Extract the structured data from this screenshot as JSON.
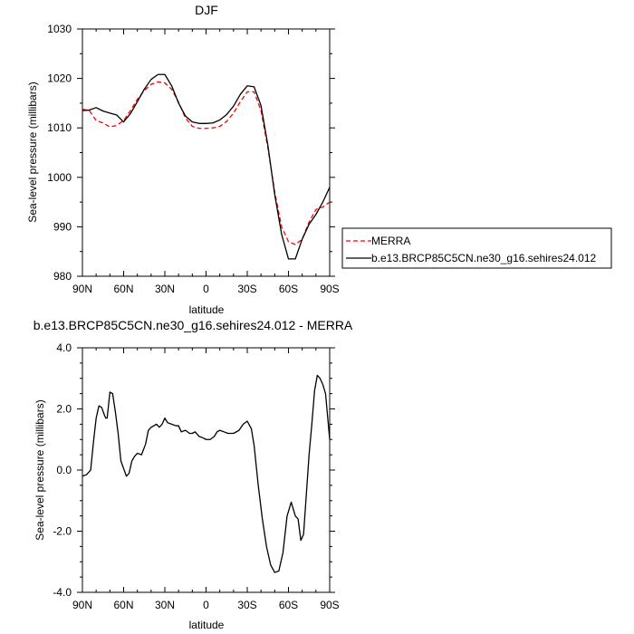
{
  "chart_data": [
    {
      "type": "line",
      "title": "DJF",
      "xlabel": "latitude",
      "ylabel": "Sea-level pressure (millibars)",
      "xlim": [
        90,
        -90
      ],
      "ylim": [
        980,
        1030
      ],
      "x_ticks": [
        90,
        60,
        30,
        0,
        -30,
        -60,
        -90
      ],
      "x_tick_labels": [
        "90N",
        "60N",
        "30N",
        "0",
        "30S",
        "60S",
        "90S"
      ],
      "y_ticks": [
        980,
        990,
        1000,
        1010,
        1020,
        1030
      ],
      "y_tick_labels": [
        "980",
        "990",
        "1000",
        "1010",
        "1020",
        "1030"
      ],
      "legend_position": "right",
      "series": [
        {
          "name": "MERRA",
          "color": "#ff0000",
          "dash": "dashed",
          "x": [
            90,
            85,
            80,
            75,
            70,
            65,
            60,
            55,
            50,
            45,
            40,
            35,
            30,
            25,
            20,
            15,
            10,
            5,
            0,
            -5,
            -10,
            -15,
            -20,
            -25,
            -30,
            -35,
            -40,
            -45,
            -50,
            -55,
            -60,
            -65,
            -70,
            -75,
            -80,
            -85,
            -90
          ],
          "y": [
            1013.8,
            1013.5,
            1011.5,
            1011,
            1010.2,
            1010.5,
            1011.5,
            1013.5,
            1015.8,
            1017.5,
            1018.8,
            1019.3,
            1019.1,
            1017.8,
            1015.2,
            1012,
            1010.3,
            1009.9,
            1009.9,
            1010,
            1010.3,
            1011.3,
            1013,
            1015.3,
            1017.3,
            1017.3,
            1013.5,
            1006,
            997,
            990,
            987,
            986.4,
            987.5,
            991,
            993.5,
            994,
            995
          ]
        },
        {
          "name": "b.e13.BRCP85C5CN.ne30_g16.sehires24.012",
          "color": "#000000",
          "dash": "solid",
          "x": [
            90,
            85,
            80,
            75,
            70,
            65,
            60,
            55,
            50,
            45,
            40,
            35,
            30,
            25,
            20,
            15,
            10,
            5,
            0,
            -5,
            -10,
            -15,
            -20,
            -25,
            -30,
            -35,
            -40,
            -45,
            -50,
            -55,
            -60,
            -65,
            -70,
            -75,
            -80,
            -85,
            -90
          ],
          "y": [
            1013.5,
            1013.6,
            1014.1,
            1013.4,
            1013,
            1012.6,
            1011.2,
            1012.9,
            1015.3,
            1017.8,
            1019.8,
            1020.8,
            1020.8,
            1018.5,
            1015,
            1012.4,
            1011.2,
            1010.9,
            1010.9,
            1011,
            1011.6,
            1012.7,
            1014.4,
            1016.8,
            1018.5,
            1018.3,
            1014.5,
            1006.5,
            996.5,
            988.5,
            983.5,
            983.5,
            987.5,
            990.5,
            992.5,
            995,
            998
          ]
        }
      ]
    },
    {
      "type": "line",
      "title": "b.e13.BRCP85C5CN.ne30_g16.sehires24.012 - MERRA",
      "xlabel": "latitude",
      "ylabel": "Sea-level pressure (millibars)",
      "xlim": [
        90,
        -90
      ],
      "ylim": [
        -4.0,
        4.0
      ],
      "x_ticks": [
        90,
        60,
        30,
        0,
        -30,
        -60,
        -90
      ],
      "x_tick_labels": [
        "90N",
        "60N",
        "30N",
        "0",
        "30S",
        "60S",
        "90S"
      ],
      "y_ticks": [
        -4,
        -2,
        0,
        2,
        4
      ],
      "y_tick_labels": [
        "-4.0",
        "-2.0",
        "0.0",
        "2.0",
        "4.0"
      ],
      "series": [
        {
          "color": "#000000",
          "dash": "solid",
          "x": [
            90,
            87,
            84,
            82,
            80,
            78,
            76,
            74,
            73,
            72,
            70,
            68,
            66,
            64,
            62,
            60,
            58,
            56,
            54,
            52,
            50,
            47,
            44,
            42,
            40,
            38,
            36,
            34,
            32,
            30,
            28,
            25,
            22,
            20,
            18,
            15,
            12,
            10,
            8,
            5,
            2,
            0,
            -3,
            -6,
            -8,
            -10,
            -13,
            -16,
            -20,
            -24,
            -27,
            -30,
            -33,
            -35,
            -38,
            -41,
            -44,
            -47,
            -50,
            -53,
            -56,
            -59,
            -62,
            -65,
            -67,
            -69,
            -71,
            -73,
            -75,
            -77,
            -79,
            -81,
            -83,
            -85,
            -87,
            -88,
            -90
          ],
          "y": [
            -0.2,
            -0.15,
            0.0,
            0.9,
            1.7,
            2.1,
            2.05,
            1.8,
            1.7,
            1.7,
            2.55,
            2.5,
            1.9,
            1.2,
            0.3,
            0.05,
            -0.2,
            -0.1,
            0.3,
            0.45,
            0.55,
            0.5,
            0.85,
            1.3,
            1.4,
            1.45,
            1.5,
            1.4,
            1.5,
            1.7,
            1.55,
            1.5,
            1.45,
            1.45,
            1.25,
            1.3,
            1.2,
            1.2,
            1.25,
            1.1,
            1.05,
            1.0,
            1.0,
            1.1,
            1.25,
            1.3,
            1.25,
            1.2,
            1.2,
            1.3,
            1.5,
            1.6,
            1.35,
            0.8,
            -0.5,
            -1.6,
            -2.5,
            -3.1,
            -3.35,
            -3.3,
            -2.7,
            -1.5,
            -1.05,
            -1.5,
            -1.6,
            -2.3,
            -2.1,
            -0.8,
            0.5,
            1.5,
            2.6,
            3.1,
            3.0,
            2.8,
            2.5,
            2.0,
            1.0
          ]
        }
      ]
    }
  ]
}
